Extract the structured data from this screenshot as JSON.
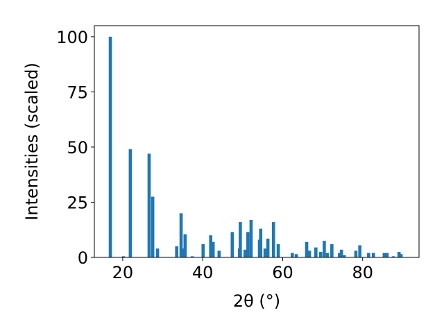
{
  "chart_data": {
    "type": "bar",
    "x_label": "2θ (°)",
    "y_label": "Intensities (scaled)",
    "color": "#1f77b4",
    "bar_width": 0.8,
    "x": [
      16.9,
      20.2,
      21.9,
      26.6,
      27.5,
      28.7,
      33.5,
      34.6,
      35.1,
      35.6,
      37.4,
      40.1,
      42.0,
      42.6,
      44.1,
      47.4,
      49.2,
      49.4,
      50.6,
      51.3,
      52.1,
      54.2,
      54.5,
      55.6,
      56.3,
      57.7,
      58.9,
      62.4,
      63.4,
      66.0,
      66.7,
      68.3,
      69.5,
      70.4,
      71.2,
      72.3,
      74.2,
      74.7,
      75.4,
      78.3,
      79.3,
      81.5,
      82.7,
      85.4,
      86.1,
      87.7,
      89.1,
      89.6
    ],
    "values": [
      100,
      0.5,
      49,
      47,
      27.5,
      4,
      5,
      20,
      4,
      10.5,
      0.5,
      6,
      10,
      7,
      3,
      11.5,
      4,
      16,
      3.5,
      11.5,
      17,
      8,
      13,
      4,
      8.5,
      16,
      6,
      2,
      1.5,
      7,
      3,
      4.5,
      2.5,
      7.5,
      2,
      6,
      2,
      3.5,
      1,
      3,
      5.5,
      2,
      2,
      2,
      2,
      0.5,
      2.5,
      1.5
    ],
    "xlim": [
      12.9,
      94.1
    ],
    "ylim": [
      0,
      105
    ],
    "xticks": [
      20,
      40,
      60,
      80
    ],
    "yticks": [
      0,
      25,
      50,
      75,
      100
    ]
  }
}
